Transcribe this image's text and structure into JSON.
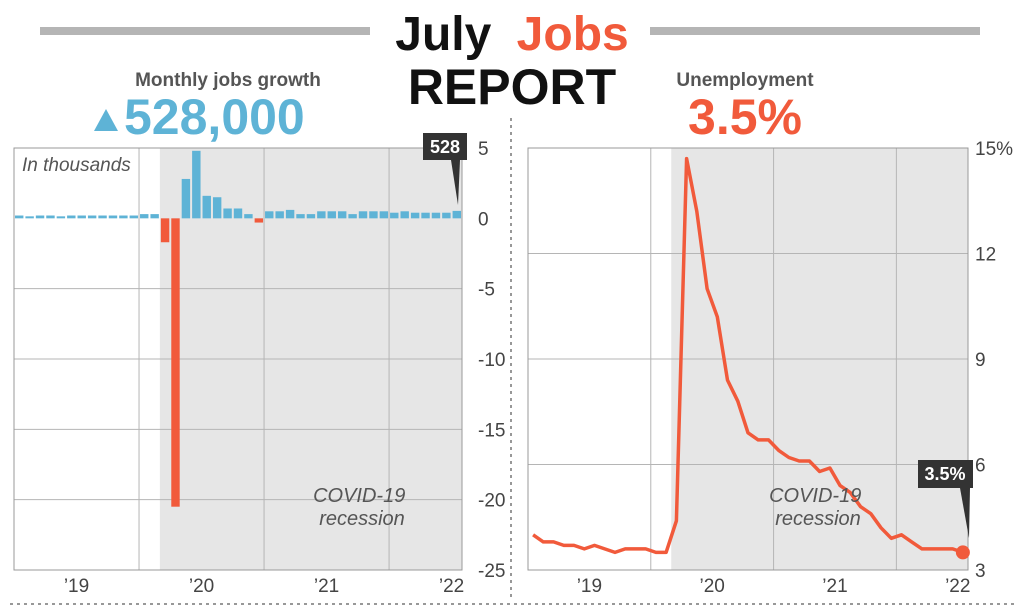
{
  "header": {
    "title_part1": "July",
    "title_part2": "Jobs",
    "title_line2": "REPORT",
    "left_label": "Monthly jobs growth",
    "left_value": "528,000",
    "left_arrow_icon": "up-triangle-icon",
    "right_label": "Unemployment",
    "right_value": "3.5%"
  },
  "colors": {
    "blue": "#5eb3d6",
    "red": "#f15a3b",
    "dark": "#111111",
    "shade": "#e6e6e6",
    "grid": "#b5b5b5",
    "callout": "#333333"
  },
  "chart_data": [
    {
      "type": "bar",
      "title": "Monthly jobs growth",
      "subtitle": "In thousands",
      "x_ticks": [
        "’19",
        "’20",
        "’21",
        "’22"
      ],
      "y_ticks": [
        "5",
        "0",
        "-5",
        "-10",
        "-15",
        "-20",
        "-25"
      ],
      "ylim": [
        -25,
        5
      ],
      "months_start": "2019-01",
      "months_end": "2022-07",
      "values": [
        0.2,
        0.05,
        0.2,
        0.2,
        0.1,
        0.2,
        0.2,
        0.2,
        0.2,
        0.2,
        0.2,
        0.2,
        0.3,
        0.3,
        -1.7,
        -20.5,
        2.8,
        4.8,
        1.6,
        1.5,
        0.7,
        0.7,
        0.3,
        -0.3,
        0.5,
        0.5,
        0.6,
        0.3,
        0.3,
        0.5,
        0.5,
        0.5,
        0.3,
        0.5,
        0.5,
        0.5,
        0.4,
        0.5,
        0.4,
        0.4,
        0.4,
        0.4,
        0.53
      ],
      "annotation_label": "528",
      "recession_label": "COVID-19 recession",
      "recession_start": "2020-03",
      "recession_end": "2022-07",
      "grid": true
    },
    {
      "type": "line",
      "title": "Unemployment",
      "x_ticks": [
        "’19",
        "’20",
        "’21",
        "’22"
      ],
      "y_ticks": [
        "15%",
        "12",
        "9",
        "6",
        "3"
      ],
      "ylim": [
        3,
        15
      ],
      "months_start": "2019-01",
      "months_end": "2022-07",
      "values": [
        4.0,
        3.8,
        3.8,
        3.7,
        3.7,
        3.6,
        3.7,
        3.6,
        3.5,
        3.6,
        3.6,
        3.6,
        3.5,
        3.5,
        4.4,
        14.7,
        13.2,
        11.0,
        10.2,
        8.4,
        7.8,
        6.9,
        6.7,
        6.7,
        6.4,
        6.2,
        6.1,
        6.1,
        5.8,
        5.9,
        5.4,
        5.2,
        4.8,
        4.6,
        4.2,
        3.9,
        4.0,
        3.8,
        3.6,
        3.6,
        3.6,
        3.6,
        3.5
      ],
      "annotation_label": "3.5%",
      "recession_label": "COVID-19 recession",
      "recession_start": "2020-03",
      "recession_end": "2022-07",
      "grid": true
    }
  ]
}
